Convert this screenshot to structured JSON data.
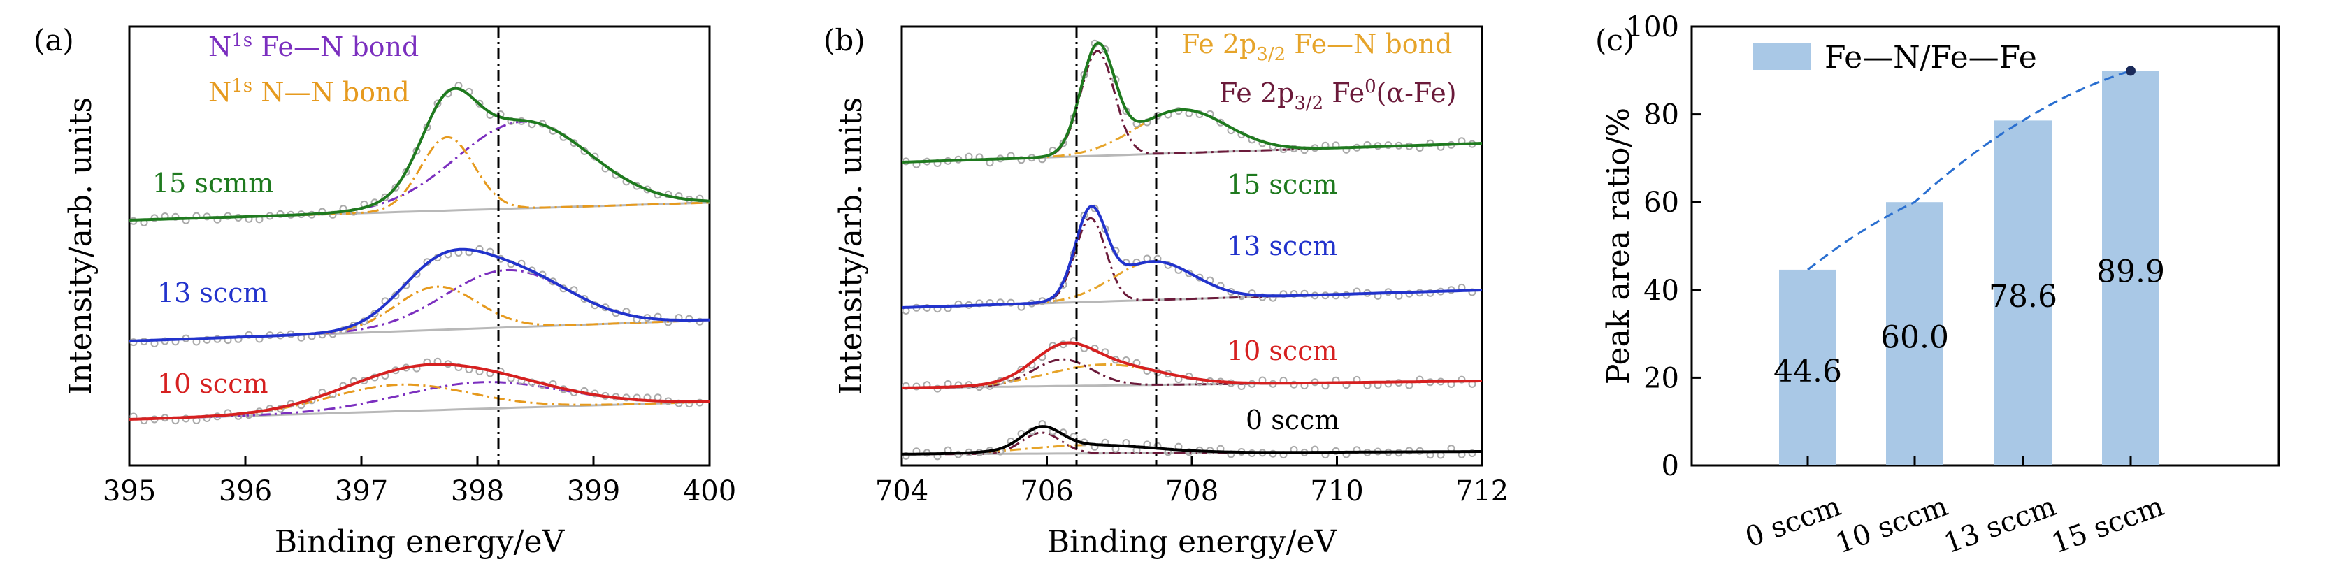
{
  "panels": {
    "a": {
      "label": "(a)",
      "xlabel": "Binding energy/eV",
      "ylabel": "Intensity/arb. units",
      "xticks": [
        "395",
        "396",
        "397",
        "398",
        "399",
        "400"
      ],
      "legend": [
        {
          "pre": "N",
          "sup": "1s",
          "post": " Fe—N bond",
          "color": "#7b2fbf"
        },
        {
          "pre": "N",
          "sup": "1s",
          "post": " N—N bond",
          "color": "#e69a1e"
        }
      ],
      "series_labels": [
        {
          "text": "15 scmm",
          "color": "#1f7a1f"
        },
        {
          "text": "13 sccm",
          "color": "#2233cc"
        },
        {
          "text": "10 sccm",
          "color": "#d62020"
        }
      ]
    },
    "b": {
      "label": "(b)",
      "xlabel": "Binding energy/eV",
      "ylabel": "Intensity/arb. units",
      "xticks": [
        "704",
        "706",
        "708",
        "710",
        "712"
      ],
      "legend": [
        {
          "pre": "Fe 2p",
          "sub": "3/2",
          "post": " Fe—N bond",
          "color": "#e6a42a"
        },
        {
          "pre": "Fe 2p",
          "sub": "3/2",
          "post": " Fe",
          "sup": "0",
          "tail": "(α-Fe)",
          "color": "#6b1a3a"
        }
      ],
      "series_labels": [
        {
          "text": "15 sccm",
          "color": "#1f7a1f"
        },
        {
          "text": "13 sccm",
          "color": "#2233cc"
        },
        {
          "text": "10 sccm",
          "color": "#d62020"
        },
        {
          "text": "0 sccm",
          "color": "#000000"
        }
      ]
    },
    "c": {
      "label": "(c)",
      "ylabel": "Peak area ratio/%",
      "yticks": [
        "0",
        "20",
        "40",
        "60",
        "80",
        "100"
      ],
      "legend": "Fe—N/Fe—Fe"
    }
  },
  "chart_data": [
    {
      "type": "line",
      "panel": "a",
      "title": "(a)",
      "xlabel": "Binding energy/eV",
      "ylabel": "Intensity/arb. units",
      "xlim": [
        395,
        400
      ],
      "reference_line_x": 398.15,
      "series": [
        {
          "name": "15 scmm"
        },
        {
          "name": "13 sccm"
        },
        {
          "name": "10 sccm"
        }
      ],
      "components": [
        "N1s Fe—N bond",
        "N1s N—N bond"
      ]
    },
    {
      "type": "line",
      "panel": "b",
      "title": "(b)",
      "xlabel": "Binding energy/eV",
      "ylabel": "Intensity/arb. units",
      "xlim": [
        704,
        712
      ],
      "reference_lines_x": [
        706.4,
        707.5
      ],
      "series": [
        {
          "name": "15 sccm"
        },
        {
          "name": "13 sccm"
        },
        {
          "name": "10 sccm"
        },
        {
          "name": "0 sccm"
        }
      ],
      "components": [
        "Fe 2p3/2 Fe—N bond",
        "Fe 2p3/2 Fe0(α-Fe)"
      ]
    },
    {
      "type": "bar",
      "panel": "c",
      "title": "(c)",
      "ylabel": "Peak area ratio/%",
      "ylim": [
        0,
        100
      ],
      "categories": [
        "0 sccm",
        "10 sccm",
        "13 sccm",
        "15 sccm"
      ],
      "values": [
        44.6,
        60.0,
        78.6,
        89.9
      ],
      "value_labels": [
        "44.6",
        "60.0",
        "78.6",
        "89.9"
      ],
      "legend": "Fe—N/Fe—Fe",
      "trend_line": true
    }
  ]
}
